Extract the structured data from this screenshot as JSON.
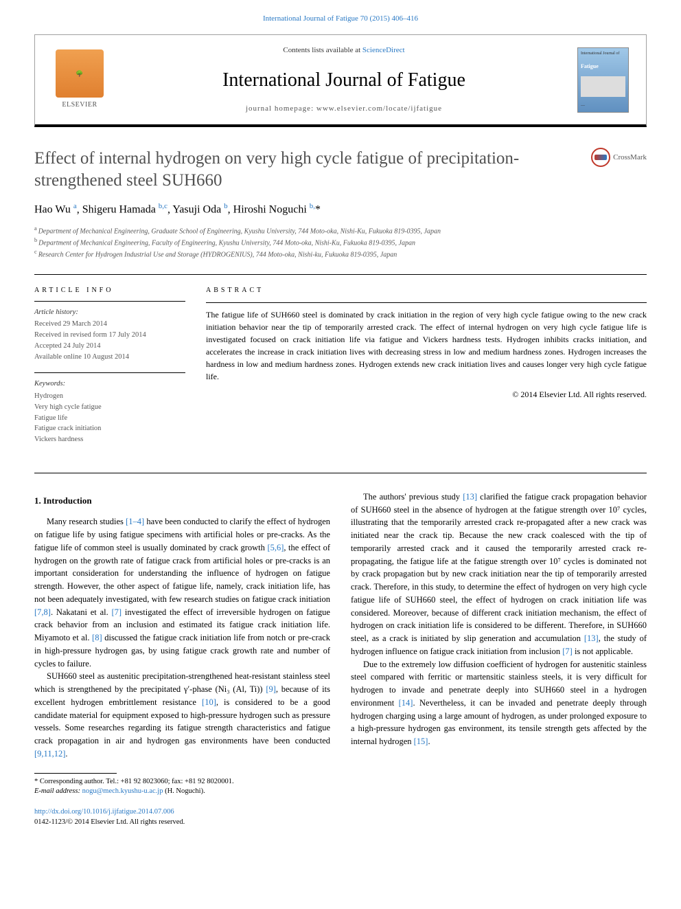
{
  "top_link": "International Journal of Fatigue 70 (2015) 406–416",
  "banner": {
    "contents_line_pre": "Contents lists available at ",
    "contents_link": "ScienceDirect",
    "journal_name": "International Journal of Fatigue",
    "homepage_line": "journal homepage: www.elsevier.com/locate/ijfatigue",
    "publisher": "ELSEVIER",
    "cover_label_top": "International Journal of",
    "cover_label_main": "Fatigue"
  },
  "crossmark": "CrossMark",
  "article": {
    "title": "Effect of internal hydrogen on very high cycle fatigue of precipitation-strengthened steel SUH660",
    "authors_html": "Hao Wu <sup>a</sup>, Shigeru Hamada <sup>b,c</sup>, Yasuji Oda <sup>b</sup>, Hiroshi Noguchi <sup>b,</sup>*"
  },
  "affiliations": {
    "a": "Department of Mechanical Engineering, Graduate School of Engineering, Kyushu University, 744 Moto-oka, Nishi-Ku, Fukuoka 819-0395, Japan",
    "b": "Department of Mechanical Engineering, Faculty of Engineering, Kyushu University, 744 Moto-oka, Nishi-Ku, Fukuoka 819-0395, Japan",
    "c": "Research Center for Hydrogen Industrial Use and Storage (HYDROGENIUS), 744 Moto-oka, Nishi-ku, Fukuoka 819-0395, Japan"
  },
  "info": {
    "heading": "ARTICLE INFO",
    "history_head": "Article history:",
    "history": {
      "l1": "Received 29 March 2014",
      "l2": "Received in revised form 17 July 2014",
      "l3": "Accepted 24 July 2014",
      "l4": "Available online 10 August 2014"
    },
    "keywords_head": "Keywords:",
    "keywords": {
      "k1": "Hydrogen",
      "k2": "Very high cycle fatigue",
      "k3": "Fatigue life",
      "k4": "Fatigue crack initiation",
      "k5": "Vickers hardness"
    }
  },
  "abstract": {
    "heading": "ABSTRACT",
    "text": "The fatigue life of SUH660 steel is dominated by crack initiation in the region of very high cycle fatigue owing to the new crack initiation behavior near the tip of temporarily arrested crack. The effect of internal hydrogen on very high cycle fatigue life is investigated focused on crack initiation life via fatigue and Vickers hardness tests. Hydrogen inhibits cracks initiation, and accelerates the increase in crack initiation lives with decreasing stress in low and medium hardness zones. Hydrogen increases the hardness in low and medium hardness zones. Hydrogen extends new crack initiation lives and causes longer very high cycle fatigue life.",
    "copyright": "© 2014 Elsevier Ltd. All rights reserved."
  },
  "body": {
    "section1": "1. Introduction",
    "p1a": "Many research studies ",
    "p1_ref1": "[1–4]",
    "p1b": " have been conducted to clarify the effect of hydrogen on fatigue life by using fatigue specimens with artificial holes or pre-cracks. As the fatigue life of common steel is usually dominated by crack growth ",
    "p1_ref2": "[5,6]",
    "p1c": ", the effect of hydrogen on the growth rate of fatigue crack from artificial holes or pre-cracks is an important consideration for understanding the influence of hydrogen on fatigue strength. However, the other aspect of fatigue life, namely, crack initiation life, has not been adequately investigated, with few research studies on fatigue crack initiation ",
    "p1_ref3": "[7,8]",
    "p1d": ". Nakatani et al. ",
    "p1_ref4": "[7]",
    "p1e": " investigated the effect of irreversible hydrogen on fatigue crack behavior from an inclusion and estimated its fatigue crack initiation life. Miyamoto et al. ",
    "p1_ref5": "[8]",
    "p1f": " discussed the fatigue crack initiation life from notch or pre-crack in high-pressure hydrogen gas, by using fatigue crack growth rate and number of cycles to failure.",
    "p2a": "SUH660 steel as austenitic precipitation-strengthened heat-resistant stainless steel which is strengthened by the precipitated γ′-phase (Ni₃ (Al, Ti)) ",
    "p2_ref1": "[9]",
    "p2b": ", because of its excellent hydrogen embrittlement resistance ",
    "p2_ref2": "[10]",
    "p2c": ", is considered to be a good candidate material for equipment exposed to high-pressure hydrogen such as pressure vessels. Some researches regarding its fatigue strength characteristics and fatigue crack propagation in air and hydrogen gas environments have been conducted ",
    "p2_ref3": "[9,11,12]",
    "p2d": ".",
    "p3a": "The authors' previous study ",
    "p3_ref1": "[13]",
    "p3b": " clarified the fatigue crack propagation behavior of SUH660 steel in the absence of hydrogen at the fatigue strength over 10⁷ cycles, illustrating that the temporarily arrested crack re-propagated after a new crack was initiated near the crack tip. Because the new crack coalesced with the tip of temporarily arrested crack and it caused the temporarily arrested crack re-propagating, the fatigue life at the fatigue strength over 10⁷ cycles is dominated not by crack propagation but by new crack initiation near the tip of temporarily arrested crack. Therefore, in this study, to determine the effect of hydrogen on very high cycle fatigue life of SUH660 steel, the effect of hydrogen on crack initiation life was considered. Moreover, because of different crack initiation mechanism, the effect of hydrogen on crack initiation life is considered to be different. Therefore, in SUH660 steel, as a crack is initiated by slip generation and accumulation ",
    "p3_ref2": "[13]",
    "p3c": ", the study of hydrogen influence on fatigue crack initiation from inclusion ",
    "p3_ref3": "[7]",
    "p3d": " is not applicable.",
    "p4a": "Due to the extremely low diffusion coefficient of hydrogen for austenitic stainless steel compared with ferritic or martensitic stainless steels, it is very difficult for hydrogen to invade and penetrate deeply into SUH660 steel in a hydrogen environment ",
    "p4_ref1": "[14]",
    "p4b": ". Nevertheless, it can be invaded and penetrate deeply through hydrogen charging using a large amount of hydrogen, as under prolonged exposure to a high-pressure hydrogen gas environment, its tensile strength gets affected by the internal hydrogen ",
    "p4_ref2": "[15]",
    "p4c": "."
  },
  "footnotes": {
    "corr": "* Corresponding author. Tel.: +81 92 8023060; fax: +81 92 8020001.",
    "email_label": "E-mail address:",
    "email": "nogu@mech.kyushu-u.ac.jp",
    "email_suffix": " (H. Noguchi)."
  },
  "footer": {
    "doi": "http://dx.doi.org/10.1016/j.ijfatigue.2014.07.006",
    "issn": "0142-1123/© 2014 Elsevier Ltd. All rights reserved."
  },
  "colors": {
    "link": "#2878c4",
    "title_gray": "#515151",
    "muted": "#555555"
  }
}
